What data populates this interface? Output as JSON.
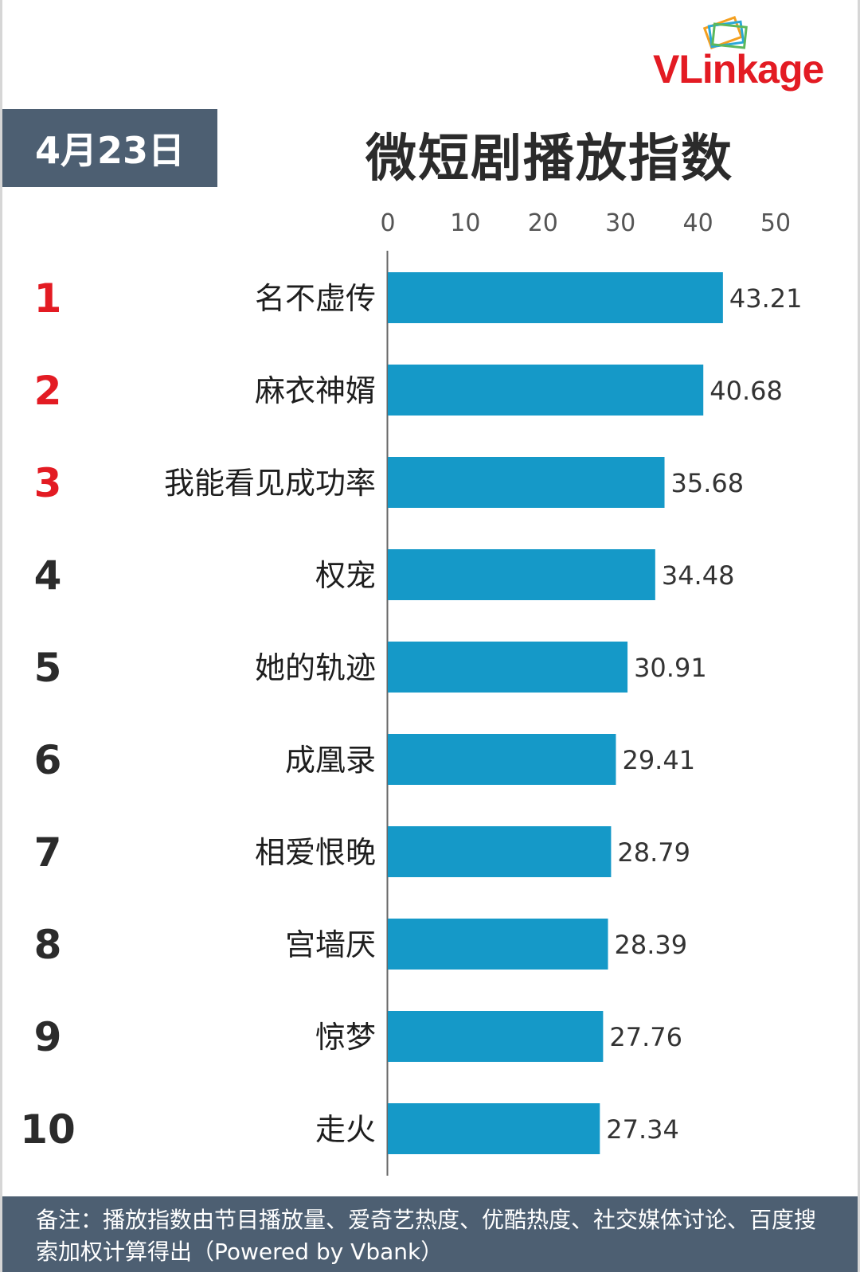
{
  "header": {
    "brand": "VLinkage",
    "date": "4月23日",
    "title": "微短剧播放指数"
  },
  "colors": {
    "bar": "#1599c8",
    "top_rank": "#e31b23",
    "rank": "#2b2b2b",
    "panel": "#4d5f72"
  },
  "chart_data": {
    "type": "bar",
    "orientation": "horizontal",
    "title": "微短剧播放指数",
    "xlim": [
      0,
      50
    ],
    "ticks": [
      "0",
      "10",
      "20",
      "30",
      "40",
      "50"
    ],
    "ranks": [
      "1",
      "2",
      "3",
      "4",
      "5",
      "6",
      "7",
      "8",
      "9",
      "10"
    ],
    "categories": [
      "名不虚传",
      "麻衣神婿",
      "我能看见成功率",
      "权宠",
      "她的轨迹",
      "成凰录",
      "相爱恨晚",
      "宫墙厌",
      "惊梦",
      "走火"
    ],
    "values": [
      43.21,
      40.68,
      35.68,
      34.48,
      30.91,
      29.41,
      28.79,
      28.39,
      27.76,
      27.34
    ],
    "value_labels": [
      "43.21",
      "40.68",
      "35.68",
      "34.48",
      "30.91",
      "29.41",
      "28.79",
      "28.39",
      "27.76",
      "27.34"
    ]
  },
  "footer": {
    "note": "备注：播放指数由节目播放量、爱奇艺热度、优酷热度、社交媒体讨论、百度搜索加权计算得出（Powered by Vbank）"
  }
}
